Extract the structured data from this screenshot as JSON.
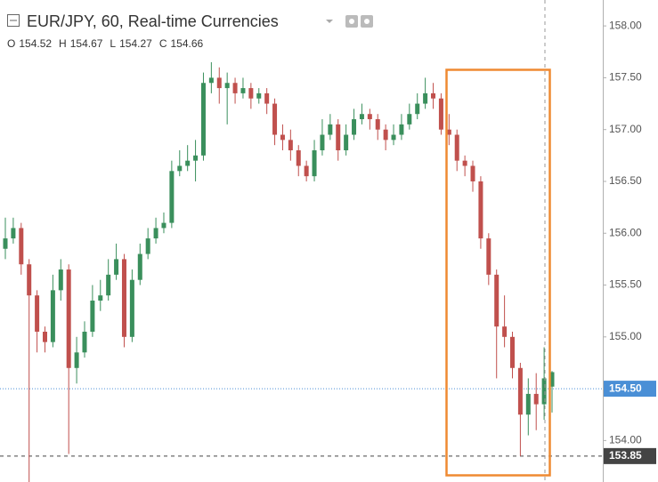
{
  "chart_data": {
    "type": "candlestick",
    "title": "EUR/JPY, 60, Real-time Currencies",
    "ohlc_legend": [
      {
        "label": "O",
        "value": 154.52
      },
      {
        "label": "H",
        "value": 154.67
      },
      {
        "label": "L",
        "value": 154.27
      },
      {
        "label": "C",
        "value": 154.66
      }
    ],
    "up_color": "#3a8f5c",
    "down_color": "#c0504d",
    "grid": false,
    "ylim": [
      153.6,
      158.25
    ],
    "yticks": [
      {
        "value": 154,
        "label": "154.00"
      },
      {
        "value": 154.5,
        "label": "154.50"
      },
      {
        "value": 155,
        "label": "155.00"
      },
      {
        "value": 155.5,
        "label": "155.50"
      },
      {
        "value": 156,
        "label": "156.00"
      },
      {
        "value": 156.5,
        "label": "156.50"
      },
      {
        "value": 157,
        "label": "157.00"
      },
      {
        "value": 157.5,
        "label": "157.50"
      },
      {
        "value": 158,
        "label": "158.00"
      }
    ],
    "price_line": {
      "value": 154.5,
      "label": "154.50",
      "color": "#4a8fd6"
    },
    "crosshair": {
      "value": 153.85,
      "label": "153.85",
      "color": "#444444"
    },
    "open": [
      155.85,
      155.95,
      156.05,
      155.7,
      155.4,
      155.05,
      154.95,
      155.45,
      155.65,
      154.7,
      154.85,
      155.05,
      155.35,
      155.4,
      155.6,
      155.75,
      155.0,
      155.55,
      155.8,
      155.95,
      156.05,
      156.1,
      156.6,
      156.65,
      156.7,
      156.75,
      157.45,
      157.5,
      157.4,
      157.45,
      157.35,
      157.4,
      157.3,
      157.35,
      157.25,
      156.95,
      156.9,
      156.8,
      156.65,
      156.55,
      156.8,
      156.95,
      157.05,
      156.8,
      156.95,
      157.1,
      157.15,
      157.1,
      157.0,
      156.9,
      156.95,
      157.05,
      157.15,
      157.25,
      157.35,
      157.3,
      157.0,
      156.95,
      156.7,
      156.65,
      156.5,
      155.95,
      155.6,
      155.1,
      155.0,
      154.7,
      154.25,
      154.45,
      154.35,
      154.52
    ],
    "high": [
      156.15,
      156.15,
      156.1,
      155.75,
      155.45,
      155.1,
      155.6,
      155.75,
      155.7,
      155.0,
      155.15,
      155.5,
      155.55,
      155.75,
      155.9,
      155.8,
      155.65,
      155.9,
      156.05,
      156.15,
      156.2,
      156.7,
      156.8,
      156.85,
      156.9,
      157.55,
      157.65,
      157.6,
      157.55,
      157.5,
      157.5,
      157.45,
      157.4,
      157.4,
      157.3,
      157.05,
      157.0,
      156.85,
      156.7,
      156.9,
      157.1,
      157.15,
      157.1,
      157.05,
      157.2,
      157.25,
      157.2,
      157.15,
      157.05,
      157.05,
      157.15,
      157.25,
      157.35,
      157.5,
      157.45,
      157.35,
      157.15,
      157.0,
      156.75,
      156.7,
      156.55,
      156.0,
      155.65,
      155.4,
      155.05,
      154.75,
      154.6,
      154.65,
      154.9,
      154.67
    ],
    "low": [
      155.75,
      155.9,
      155.6,
      153.6,
      154.85,
      154.85,
      154.9,
      155.35,
      153.87,
      154.55,
      154.8,
      155.0,
      155.25,
      155.35,
      155.55,
      154.9,
      154.95,
      155.5,
      155.75,
      155.9,
      156.0,
      156.05,
      156.55,
      156.6,
      156.5,
      156.7,
      157.35,
      157.25,
      157.05,
      157.25,
      157.3,
      157.2,
      157.25,
      157.15,
      156.85,
      156.8,
      156.7,
      156.55,
      156.5,
      156.5,
      156.75,
      156.9,
      156.7,
      156.75,
      156.9,
      157.05,
      157.0,
      156.9,
      156.8,
      156.85,
      156.9,
      157.0,
      157.1,
      157.2,
      157.2,
      156.95,
      156.85,
      156.6,
      156.55,
      156.4,
      155.85,
      155.5,
      154.6,
      154.9,
      154.6,
      153.85,
      154.05,
      154.1,
      154.2,
      154.27
    ],
    "close": [
      155.95,
      156.05,
      155.7,
      155.4,
      155.05,
      154.95,
      155.45,
      155.65,
      154.7,
      154.85,
      155.05,
      155.35,
      155.4,
      155.6,
      155.75,
      155.0,
      155.55,
      155.8,
      155.95,
      156.05,
      156.1,
      156.6,
      156.65,
      156.7,
      156.75,
      157.45,
      157.5,
      157.4,
      157.45,
      157.35,
      157.4,
      157.3,
      157.35,
      157.25,
      156.95,
      156.9,
      156.8,
      156.65,
      156.55,
      156.8,
      156.95,
      157.05,
      156.8,
      156.95,
      157.1,
      157.15,
      157.1,
      157.0,
      156.9,
      156.95,
      157.05,
      157.15,
      157.25,
      157.35,
      157.3,
      157.0,
      156.95,
      156.7,
      156.65,
      156.5,
      155.95,
      155.6,
      155.1,
      155.0,
      154.7,
      154.25,
      154.45,
      154.35,
      154.6,
      154.66
    ]
  }
}
